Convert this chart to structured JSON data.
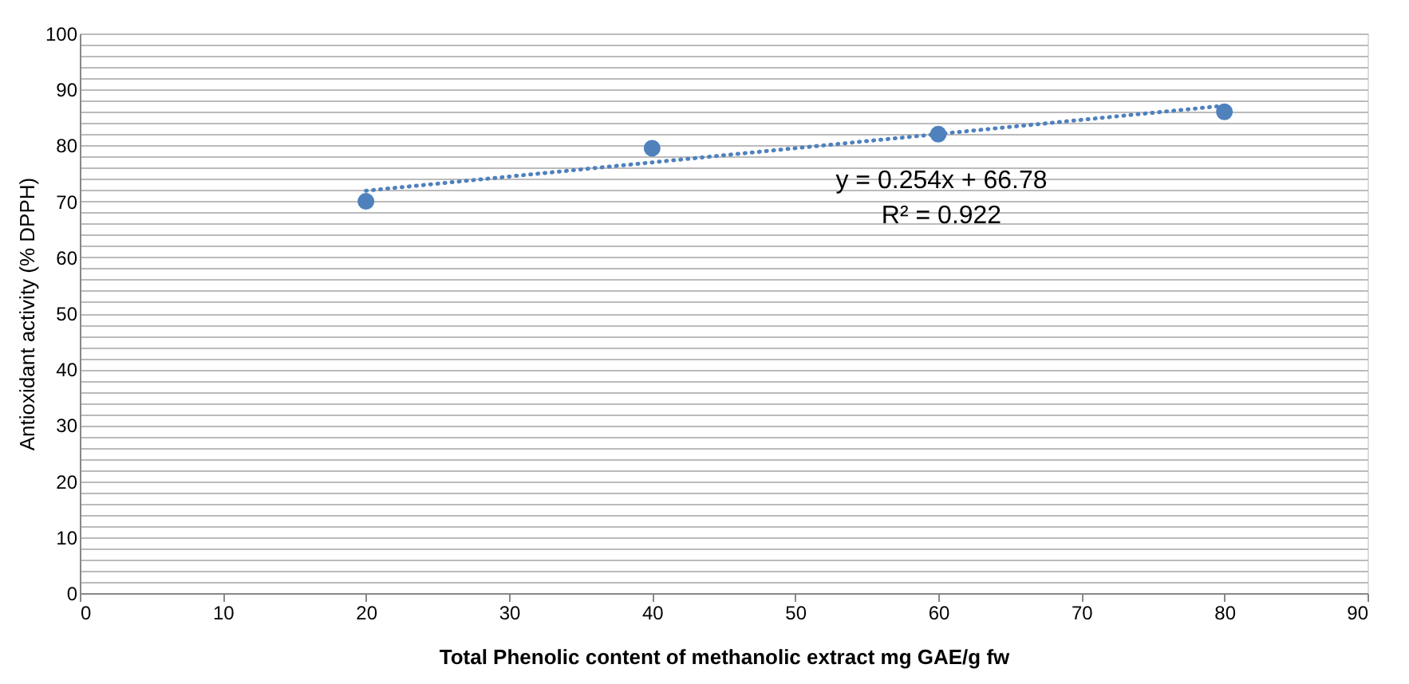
{
  "chart_data": {
    "type": "scatter",
    "xlabel": "Total Phenolic content of methanolic extract  mg GAE/g fw",
    "ylabel": "Antioxidant activity (% DPPH)",
    "x": [
      20,
      40,
      60,
      80
    ],
    "marker": "circle",
    "series": [
      {
        "color": "#4f81bd",
        "values": [
          70,
          79.5,
          82,
          86
        ]
      },
      {
        "type": "line",
        "color": "#4f81bd",
        "x": [
          20,
          80
        ],
        "values": [
          71.9,
          87.1
        ],
        "line_style": "dotted",
        "marker": "none"
      }
    ],
    "xlim": [
      0,
      90
    ],
    "xticks": [
      0,
      10,
      20,
      30,
      40,
      50,
      60,
      70,
      80,
      90
    ],
    "ylim": [
      0,
      100
    ],
    "yticks": [
      0,
      {
        "value": 2,
        "label": null
      },
      {
        "value": 4,
        "label": null
      },
      {
        "value": 6,
        "label": null
      },
      {
        "value": 8,
        "label": null
      },
      10,
      {
        "value": 12,
        "label": null
      },
      {
        "value": 14,
        "label": null
      },
      {
        "value": 16,
        "label": null
      },
      {
        "value": 18,
        "label": null
      },
      20,
      {
        "value": 22,
        "label": null
      },
      {
        "value": 24,
        "label": null
      },
      {
        "value": 26,
        "label": null
      },
      {
        "value": 28,
        "label": null
      },
      30,
      {
        "value": 32,
        "label": null
      },
      {
        "value": 34,
        "label": null
      },
      {
        "value": 36,
        "label": null
      },
      {
        "value": 38,
        "label": null
      },
      40,
      {
        "value": 42,
        "label": null
      },
      {
        "value": 44,
        "label": null
      },
      {
        "value": 46,
        "label": null
      },
      {
        "value": 48,
        "label": null
      },
      50,
      {
        "value": 52,
        "label": null
      },
      {
        "value": 54,
        "label": null
      },
      {
        "value": 56,
        "label": null
      },
      {
        "value": 58,
        "label": null
      },
      60,
      {
        "value": 62,
        "label": null
      },
      {
        "value": 64,
        "label": null
      },
      {
        "value": 66,
        "label": null
      },
      {
        "value": 68,
        "label": null
      },
      70,
      {
        "value": 72,
        "label": null
      },
      {
        "value": 74,
        "label": null
      },
      {
        "value": 76,
        "label": null
      },
      {
        "value": 78,
        "label": null
      },
      80,
      {
        "value": 82,
        "label": null
      },
      {
        "value": 84,
        "label": null
      },
      {
        "value": 86,
        "label": null
      },
      {
        "value": 88,
        "label": null
      },
      90,
      {
        "value": 92,
        "label": null
      },
      {
        "value": 94,
        "label": null
      },
      {
        "value": 96,
        "label": null
      },
      {
        "value": 98,
        "label": null
      },
      100
    ],
    "grid": "y",
    "annotations": [
      "y = 0.254x + 66.78",
      "R² = 0.922"
    ]
  }
}
